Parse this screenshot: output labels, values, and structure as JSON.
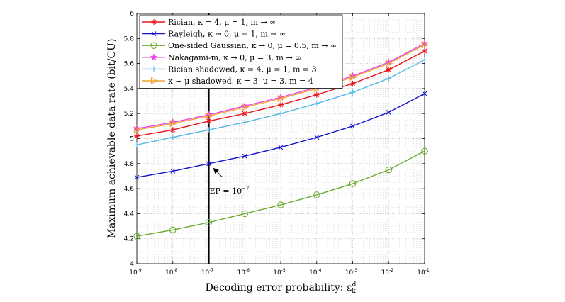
{
  "chart_data": {
    "type": "line",
    "xlabel": "Decoding error probability: ε_k^d",
    "ylabel": "Maximum achievable data rate (bit/CU)",
    "x_tick_exponents": [
      -9,
      -8,
      -7,
      -6,
      -5,
      -4,
      -3,
      -2,
      -1
    ],
    "x_tick_labels": [
      "10^-9",
      "10^-8",
      "10^-7",
      "10^-6",
      "10^-5",
      "10^-4",
      "10^-3",
      "10^-2",
      "10^-1"
    ],
    "x_scale": "log",
    "xlim": [
      -9,
      -1
    ],
    "ylim": [
      4,
      6
    ],
    "y_ticks": [
      4,
      4.2,
      4.4,
      4.6,
      4.8,
      5,
      5.2,
      5.4,
      5.6,
      5.8,
      6
    ],
    "y_tick_labels": [
      "4",
      "4.2",
      "4.4",
      "4.6",
      "4.8",
      "5",
      "5.2",
      "5.4",
      "5.6",
      "5.8",
      "6"
    ],
    "grid": true,
    "legend_position": "top-left",
    "series": [
      {
        "name": "Rician, κ = 4, μ = 1, m → ∞",
        "color": "#e8151b",
        "marker": "asterisk",
        "values": [
          5.02,
          5.07,
          5.14,
          5.2,
          5.27,
          5.35,
          5.44,
          5.55,
          5.7
        ]
      },
      {
        "name": "Rayleigh, κ → 0, μ = 1, m → ∞",
        "color": "#1414c8",
        "marker": "x",
        "values": [
          4.69,
          4.74,
          4.8,
          4.86,
          4.93,
          5.01,
          5.1,
          5.21,
          5.36
        ]
      },
      {
        "name": "One-sided Gaussian, κ → 0, μ = 0.5, m → ∞",
        "color": "#6aaa2e",
        "marker": "circle",
        "values": [
          4.22,
          4.27,
          4.33,
          4.4,
          4.47,
          4.55,
          4.64,
          4.75,
          4.9
        ]
      },
      {
        "name": "Nakagami-m, κ → 0, μ = 3, m → ∞",
        "color": "#ee44e6",
        "marker": "star",
        "values": [
          5.08,
          5.13,
          5.19,
          5.26,
          5.33,
          5.41,
          5.5,
          5.61,
          5.76
        ]
      },
      {
        "name": "Rician shadowed, κ = 4, μ = 1, m = 3",
        "color": "#55b7e6",
        "marker": "plus",
        "values": [
          4.95,
          5.01,
          5.07,
          5.13,
          5.2,
          5.28,
          5.37,
          5.48,
          5.63
        ]
      },
      {
        "name": "κ − μ shadowed, κ = 3, μ = 3, m = 4",
        "color": "#efa52d",
        "marker": "triangle-right",
        "values": [
          5.07,
          5.12,
          5.18,
          5.25,
          5.32,
          5.4,
          5.49,
          5.6,
          5.75
        ]
      }
    ],
    "vline": {
      "x_exponent": -7,
      "color": "#000000"
    },
    "annotation": {
      "text_prefix": "EP = 10",
      "text_exponent": "−7",
      "target_exponent": -7,
      "target_value": 4.8,
      "text_anchor_exponent": -6.98,
      "text_anchor_value": 4.56
    }
  }
}
